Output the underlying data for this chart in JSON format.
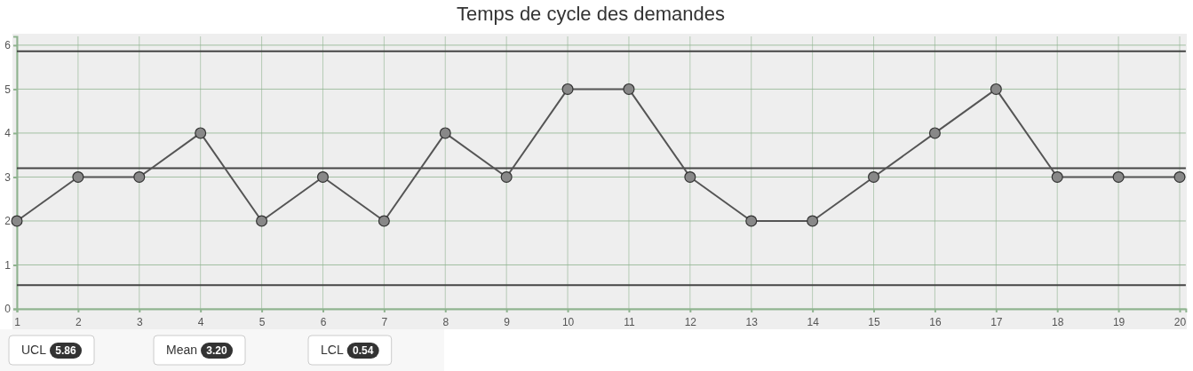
{
  "chart_data": {
    "type": "line",
    "title": "Temps de cycle des demandes",
    "x": [
      1,
      2,
      3,
      4,
      5,
      6,
      7,
      8,
      9,
      10,
      11,
      12,
      13,
      14,
      15,
      16,
      17,
      18,
      19,
      20
    ],
    "series": [
      {
        "color": "#555555",
        "values": [
          2,
          3,
          3,
          4,
          2,
          3,
          2,
          4,
          3,
          5,
          5,
          3,
          2,
          2,
          3,
          4,
          5,
          3,
          3,
          3
        ]
      }
    ],
    "xlim": [
      1,
      20.1
    ],
    "xticks": [
      1,
      2,
      3,
      4,
      5,
      6,
      7,
      8,
      9,
      10,
      11,
      12,
      13,
      14,
      15,
      16,
      17,
      18,
      19,
      20
    ],
    "ylim": [
      0,
      6.2
    ],
    "yticks": [
      0,
      1,
      2,
      3,
      4,
      5,
      6
    ],
    "grid": true,
    "marker": "circle",
    "line_style": "solid",
    "ref_lines": [
      {
        "axis": "y",
        "value": 5.86,
        "color": "#444444"
      },
      {
        "axis": "y",
        "value": 3.2,
        "color": "#444444"
      },
      {
        "axis": "y",
        "value": 0.54,
        "color": "#444444"
      }
    ],
    "annotations": [
      "UCL",
      "5.86",
      "Mean",
      "3.20",
      "LCL",
      "0.54"
    ]
  }
}
